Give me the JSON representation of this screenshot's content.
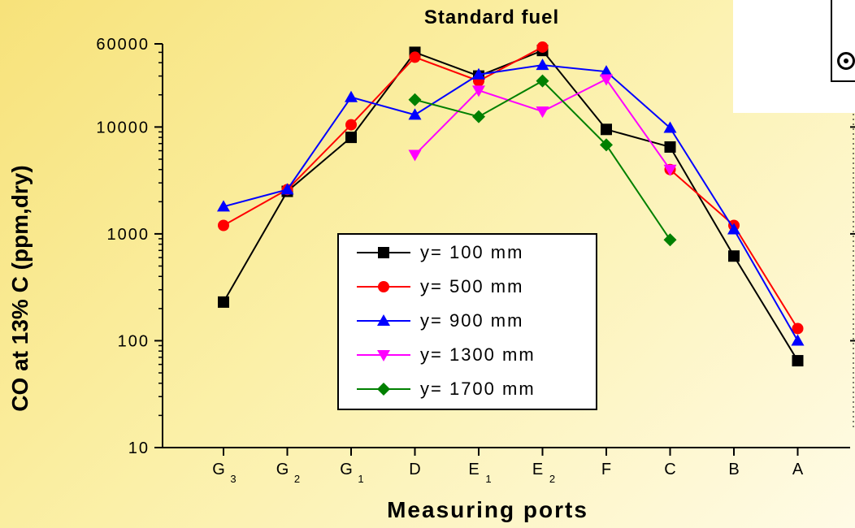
{
  "chart_data": {
    "type": "line",
    "title": "Standard fuel",
    "xlabel": "Measuring ports",
    "ylabel": "CO at 13% C (ppm,dry)",
    "y_scale": "log",
    "ylim": [
      10,
      60000
    ],
    "y_ticks": [
      {
        "value": 10,
        "label": "10"
      },
      {
        "value": 100,
        "label": "100"
      },
      {
        "value": 1000,
        "label": "1000"
      },
      {
        "value": 10000,
        "label": "10000"
      },
      {
        "value": 60000,
        "label": "60000"
      }
    ],
    "categories": [
      {
        "main": "G",
        "sub": "3"
      },
      {
        "main": "G",
        "sub": "2"
      },
      {
        "main": "G",
        "sub": "1"
      },
      {
        "main": "D",
        "sub": ""
      },
      {
        "main": "E",
        "sub": "1"
      },
      {
        "main": "E",
        "sub": "2"
      },
      {
        "main": "F",
        "sub": ""
      },
      {
        "main": "C",
        "sub": ""
      },
      {
        "main": "B",
        "sub": ""
      },
      {
        "main": "A",
        "sub": ""
      }
    ],
    "grid": false,
    "legend_position": "center",
    "series": [
      {
        "name": "y= 100 mm",
        "color": "#000000",
        "marker": "square",
        "values": [
          230,
          2500,
          8000,
          50000,
          30000,
          52000,
          9500,
          6500,
          620,
          65
        ]
      },
      {
        "name": "y= 500 mm",
        "color": "#ff0000",
        "marker": "circle",
        "values": [
          1200,
          2600,
          10500,
          45000,
          27000,
          56000,
          null,
          4000,
          1200,
          130
        ]
      },
      {
        "name": "y= 900 mm",
        "color": "#0000ff",
        "marker": "triangle-up",
        "values": [
          1800,
          2600,
          19000,
          13000,
          31000,
          38000,
          33000,
          9800,
          1100,
          100
        ]
      },
      {
        "name": "y= 1300 mm",
        "color": "#ff00ff",
        "marker": "triangle-down",
        "values": [
          null,
          null,
          null,
          5500,
          22000,
          14000,
          28000,
          4000,
          null,
          null
        ]
      },
      {
        "name": "y= 1700 mm",
        "color": "#008000",
        "marker": "diamond",
        "values": [
          null,
          null,
          null,
          18000,
          12500,
          27000,
          6800,
          880,
          null,
          null
        ]
      }
    ]
  }
}
